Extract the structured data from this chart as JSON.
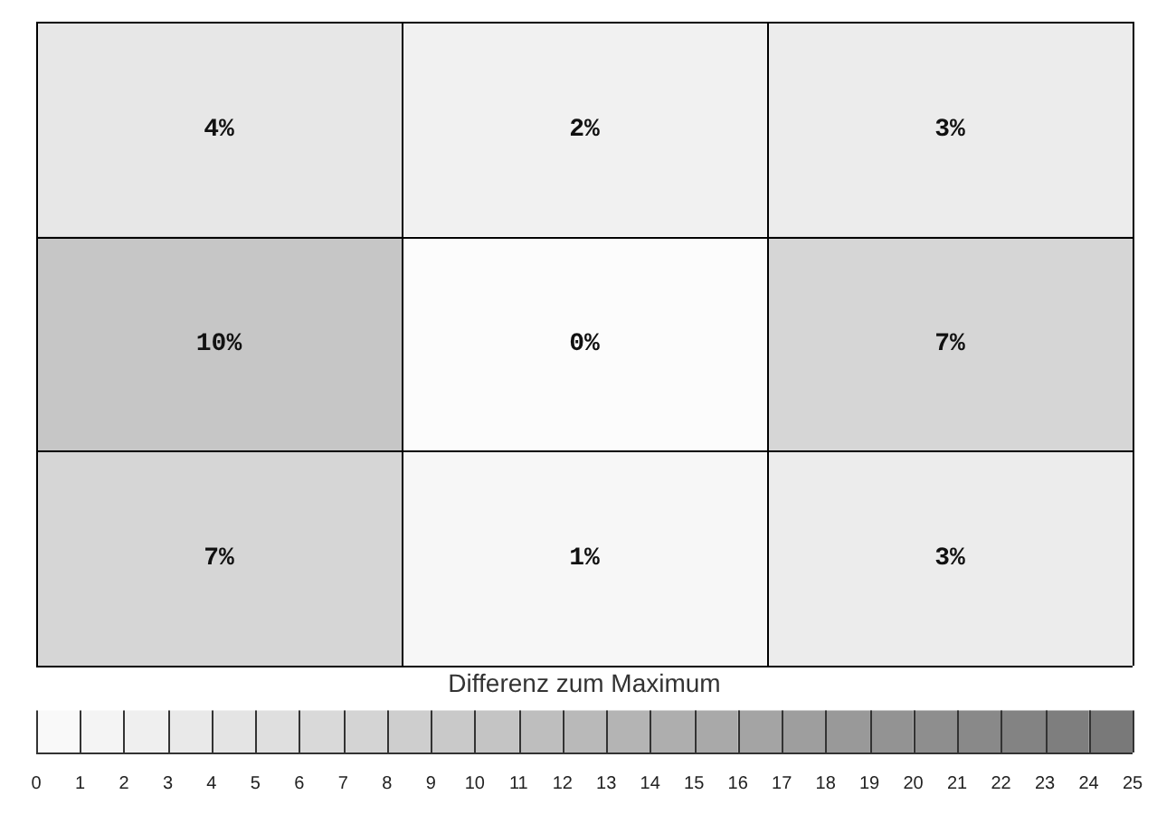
{
  "chart_data": {
    "type": "heatmap",
    "categories": [
      null,
      null,
      null
    ],
    "y_categories": [
      null,
      null,
      null
    ],
    "cells": [
      [
        4,
        2,
        3
      ],
      [
        10,
        0,
        7
      ],
      [
        7,
        1,
        3
      ]
    ],
    "cell_labels": [
      [
        "4%",
        "2%",
        "3%"
      ],
      [
        "10%",
        "0%",
        "7%"
      ],
      [
        "7%",
        "1%",
        "3%"
      ]
    ],
    "clabel": "Differenz zum Maximum",
    "clim": [
      0,
      25
    ],
    "cticks": [
      0,
      1,
      2,
      3,
      4,
      5,
      6,
      7,
      8,
      9,
      10,
      11,
      12,
      13,
      14,
      15,
      16,
      17,
      18,
      19,
      20,
      21,
      22,
      23,
      24,
      25
    ]
  }
}
